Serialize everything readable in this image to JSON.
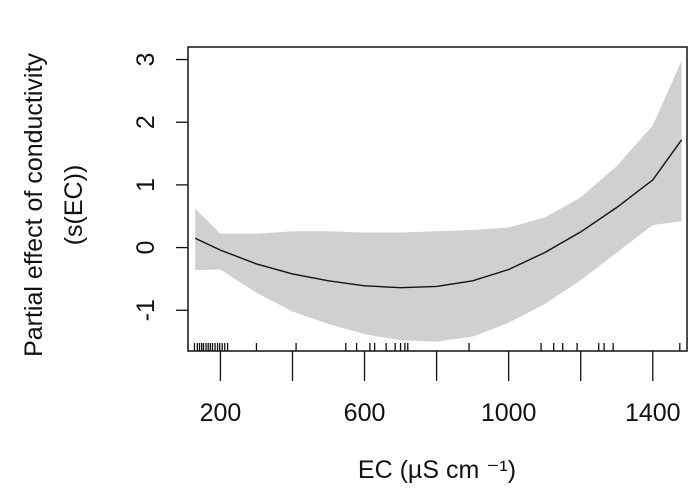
{
  "chart_data": {
    "type": "line",
    "xlabel": "EC (µS cm ⁻¹)",
    "ylabel_line1": "Partial effect of conductivity",
    "ylabel_line2": "(s(EC))",
    "xlim": [
      110,
      1495
    ],
    "ylim": [
      -1.65,
      3.2
    ],
    "x_ticks": [
      200,
      600,
      1000,
      1400
    ],
    "x_minor_ticks": [
      400,
      800,
      1200
    ],
    "y_ticks": [
      -1,
      0,
      1,
      2,
      3
    ],
    "y_tick_labels": [
      "-1",
      "0",
      "1",
      "2",
      "3"
    ],
    "grid": false,
    "series": [
      {
        "x": [
          130,
          200,
          300,
          400,
          500,
          600,
          700,
          800,
          900,
          1000,
          1100,
          1200,
          1300,
          1400,
          1480
        ],
        "fit": [
          0.15,
          -0.04,
          -0.26,
          -0.42,
          -0.53,
          -0.61,
          -0.64,
          -0.62,
          -0.53,
          -0.35,
          -0.08,
          0.25,
          0.64,
          1.08,
          1.72
        ],
        "upper": [
          0.62,
          0.22,
          0.22,
          0.26,
          0.26,
          0.24,
          0.24,
          0.26,
          0.28,
          0.32,
          0.48,
          0.8,
          1.3,
          1.95,
          2.98
        ],
        "lower": [
          -0.36,
          -0.35,
          -0.72,
          -1.02,
          -1.22,
          -1.38,
          -1.48,
          -1.5,
          -1.42,
          -1.2,
          -0.9,
          -0.52,
          -0.08,
          0.36,
          0.42
        ]
      }
    ],
    "rug": [
      128,
      136,
      142,
      148,
      153,
      160,
      166,
      172,
      178,
      185,
      192,
      198,
      205,
      212,
      220,
      300,
      410,
      548,
      578,
      615,
      628,
      660,
      685,
      700,
      712,
      720,
      890,
      1090,
      1125,
      1150,
      1190,
      1250,
      1265,
      1290,
      1475
    ]
  },
  "colors": {
    "band": "#d0d0d0",
    "line": "#111111",
    "axis": "#111111"
  }
}
